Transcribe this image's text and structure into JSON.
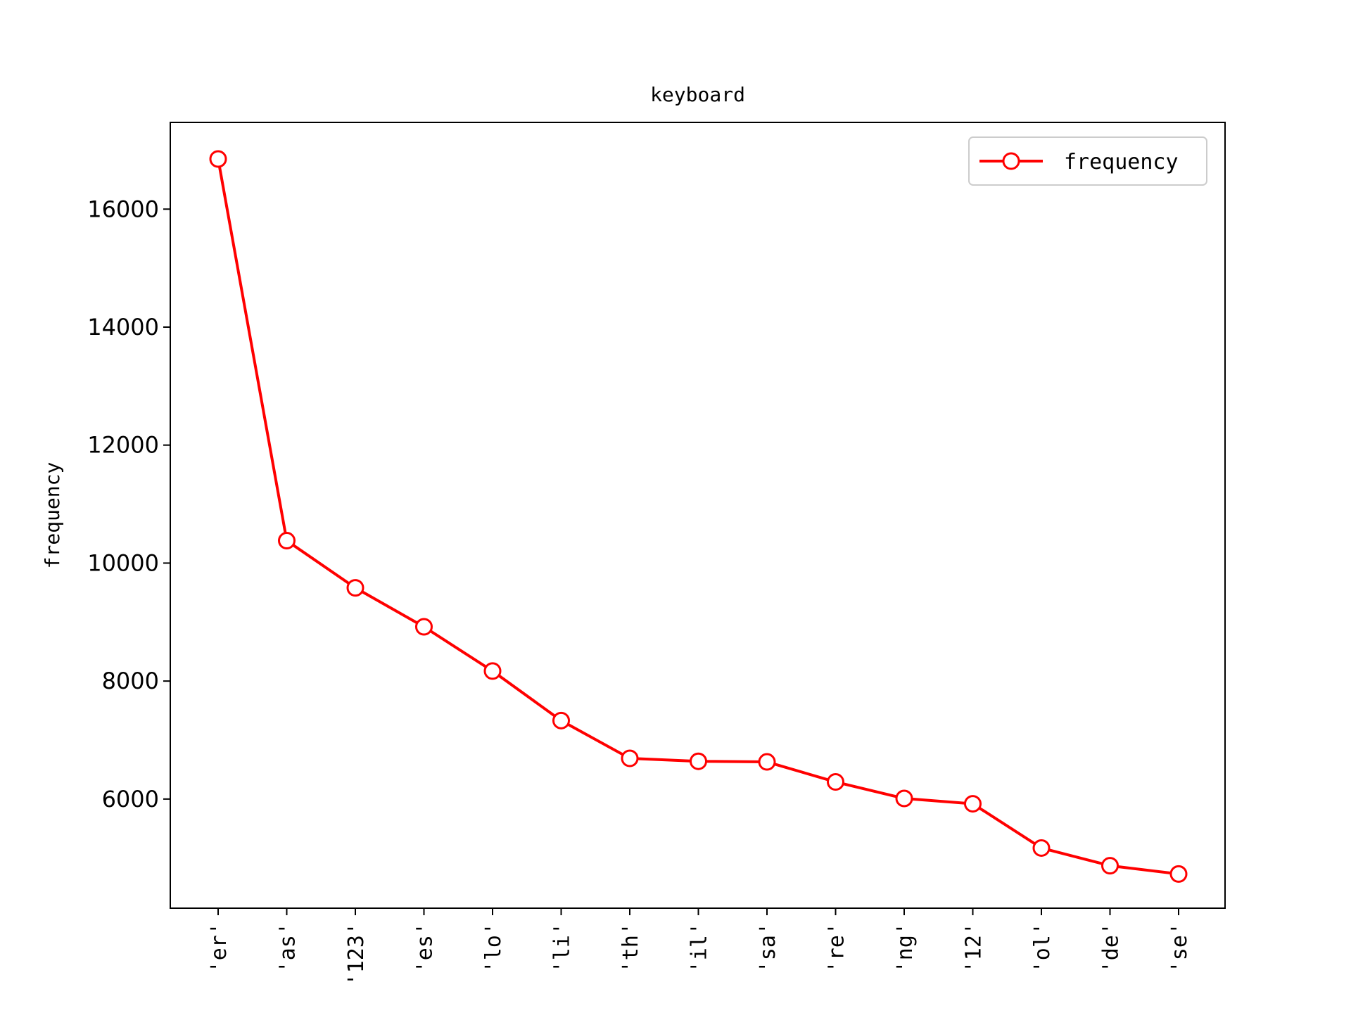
{
  "chart_data": {
    "type": "line",
    "title": "keyboard",
    "xlabel": "",
    "ylabel": "frequency",
    "categories": [
      "'er'",
      "'as'",
      "'123'",
      "'es'",
      "'lo'",
      "'li'",
      "'th'",
      "'il'",
      "'sa'",
      "'re'",
      "'ng'",
      "'12'",
      "'ol'",
      "'de'",
      "'se'"
    ],
    "series": [
      {
        "name": "frequency",
        "values": [
          16850,
          10380,
          9580,
          8920,
          8170,
          7330,
          6690,
          6640,
          6630,
          6290,
          6010,
          5920,
          5170,
          4870,
          4730
        ]
      }
    ],
    "yticks": [
      6000,
      8000,
      10000,
      12000,
      14000,
      16000
    ],
    "ylim": [
      4150,
      17470
    ],
    "grid": false,
    "legend_position": "top-right",
    "colors": {
      "series": "#ff0000",
      "marker_fill": "#ffffff",
      "axes": "#000000"
    }
  }
}
